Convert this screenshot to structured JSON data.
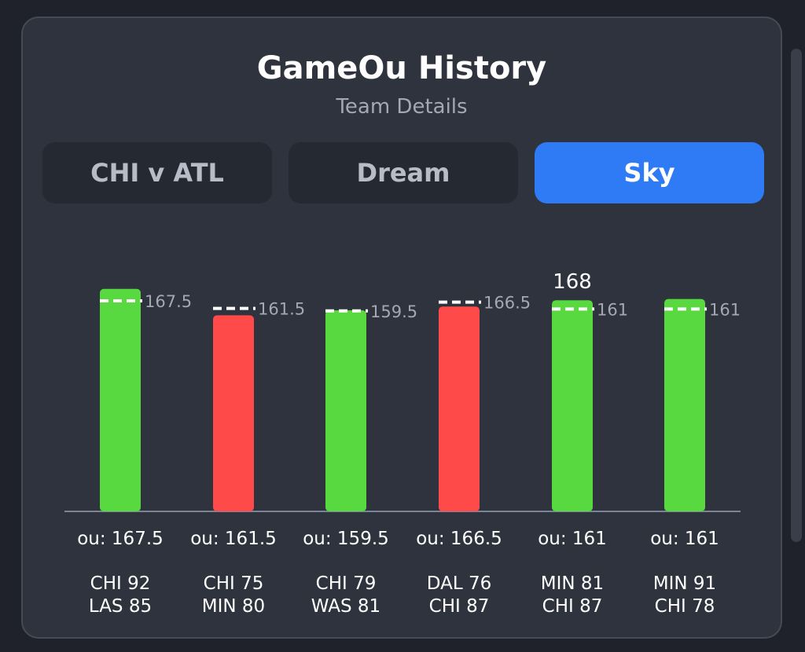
{
  "header": {
    "title": "GameOu History",
    "subtitle": "Team Details"
  },
  "tabs": [
    {
      "label": "CHI v ATL",
      "active": false
    },
    {
      "label": "Dream",
      "active": false
    },
    {
      "label": "Sky",
      "active": true
    }
  ],
  "colors": {
    "over": "#57d93f",
    "under": "#ff4a4a",
    "line": "#ffffff",
    "accent": "#2f7bf5"
  },
  "chart_data": {
    "type": "bar",
    "categories": [
      "CHI 92\nLAS 85",
      "CHI 75\nMIN 80",
      "CHI 79\nWAS 81",
      "DAL 76\nCHI 87",
      "MIN 81\nCHI 87",
      "MIN 91\nCHI 78"
    ],
    "values": [
      177,
      156,
      160,
      163,
      168,
      169
    ],
    "ou_lines": [
      167.5,
      161.5,
      159.5,
      166.5,
      161,
      161
    ],
    "ou_labels": [
      "167.5",
      "161.5",
      "159.5",
      "166.5",
      "161",
      "161"
    ],
    "x_labels": [
      "ou: 167.5",
      "ou: 161.5",
      "ou: 159.5",
      "ou: 166.5",
      "ou: 161",
      "ou: 161"
    ],
    "games": [
      [
        "CHI 92",
        "LAS 85"
      ],
      [
        "CHI 75",
        "MIN 80"
      ],
      [
        "CHI 79",
        "WAS 81"
      ],
      [
        "DAL 76",
        "CHI 87"
      ],
      [
        "MIN 81",
        "CHI 87"
      ],
      [
        "MIN 91",
        "CHI 78"
      ]
    ],
    "results": [
      "over",
      "under",
      "over",
      "under",
      "over",
      "over"
    ],
    "value_label": {
      "index": 4,
      "text": "168"
    },
    "ylim": [
      0,
      194
    ],
    "grid": false,
    "legend": "none"
  }
}
